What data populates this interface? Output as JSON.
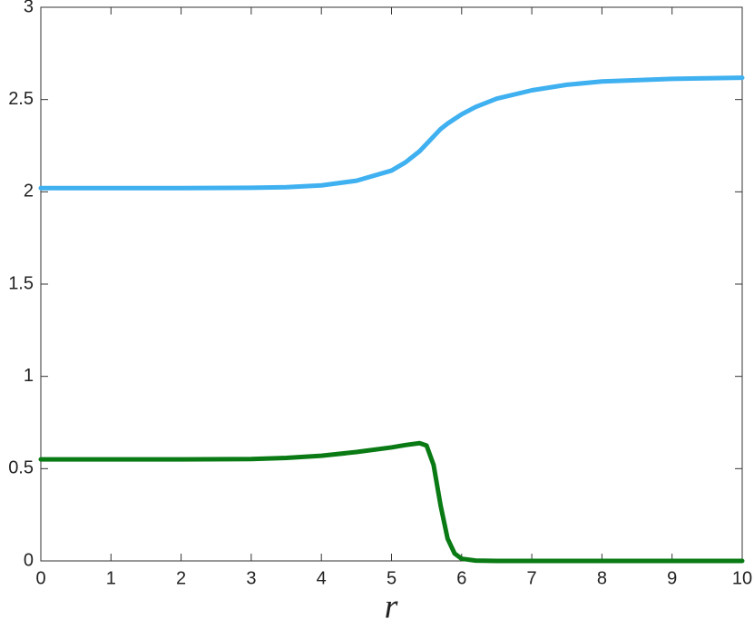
{
  "chart_data": {
    "type": "line",
    "xlabel": "r",
    "x": [
      0,
      1,
      2,
      3,
      3.5,
      4,
      4.5,
      5,
      5.2,
      5.4,
      5.5,
      5.6,
      5.7,
      5.8,
      5.9,
      6,
      6.2,
      6.5,
      7,
      7.5,
      8,
      9,
      10
    ],
    "series": [
      {
        "color": "#3fb0f0",
        "values": [
          2.02,
          2.02,
          2.02,
          2.022,
          2.025,
          2.035,
          2.06,
          2.115,
          2.16,
          2.22,
          2.26,
          2.3,
          2.34,
          2.37,
          2.395,
          2.42,
          2.46,
          2.505,
          2.55,
          2.58,
          2.598,
          2.612,
          2.618
        ]
      },
      {
        "color": "#0a7a14",
        "values": [
          0.55,
          0.55,
          0.55,
          0.552,
          0.558,
          0.57,
          0.59,
          0.615,
          0.628,
          0.638,
          0.625,
          0.52,
          0.3,
          0.12,
          0.04,
          0.012,
          0.002,
          0,
          0,
          0,
          0,
          0,
          0
        ]
      }
    ],
    "xlim": [
      0,
      10
    ],
    "xticks": [
      0,
      1,
      2,
      3,
      4,
      5,
      6,
      7,
      8,
      9,
      10
    ],
    "ylim": [
      0,
      3
    ],
    "yticks": [
      0,
      0.5,
      1,
      1.5,
      2,
      2.5,
      3
    ],
    "grid": false
  }
}
